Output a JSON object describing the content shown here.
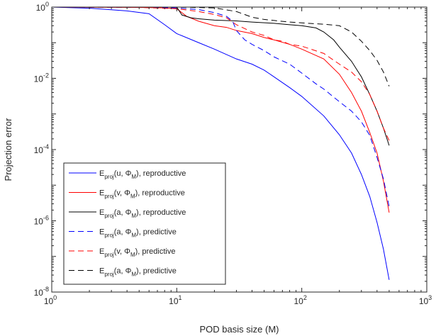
{
  "chart_data": {
    "type": "line",
    "xlabel": "POD basis size (M)",
    "ylabel": "Projection error",
    "xscale": "log",
    "yscale": "log",
    "xlim": [
      1,
      1000
    ],
    "ylim": [
      1e-08,
      1
    ],
    "grid": false,
    "legend_position": "bottom-left",
    "x_ticks": [
      {
        "value": 1,
        "base": "10",
        "exp": "0"
      },
      {
        "value": 10,
        "base": "10",
        "exp": "1"
      },
      {
        "value": 100,
        "base": "10",
        "exp": "2"
      },
      {
        "value": 1000,
        "base": "10",
        "exp": "3"
      }
    ],
    "y_ticks": [
      {
        "value": 1,
        "base": "10",
        "exp": "0"
      },
      {
        "value": 0.01,
        "base": "10",
        "exp": "-2"
      },
      {
        "value": 0.0001,
        "base": "10",
        "exp": "-4"
      },
      {
        "value": 1e-06,
        "base": "10",
        "exp": "-6"
      },
      {
        "value": 1e-08,
        "base": "10",
        "exp": "-8"
      }
    ],
    "series": [
      {
        "legend": {
          "quantity": "u",
          "suffix": ", reproductive"
        },
        "color": "#0000ff",
        "style": "solid",
        "x": [
          1,
          2,
          4,
          6,
          8,
          10,
          15,
          20,
          30,
          40,
          50,
          60,
          80,
          100,
          150,
          200,
          250,
          300,
          350,
          400,
          450,
          500
        ],
        "y": [
          1,
          0.93,
          0.78,
          0.65,
          0.32,
          0.18,
          0.1,
          0.066,
          0.035,
          0.025,
          0.017,
          0.011,
          0.0055,
          0.0031,
          0.00088,
          0.00026,
          8e-05,
          2e-05,
          4.8e-06,
          9e-07,
          1.6e-07,
          2.2e-08
        ]
      },
      {
        "legend": {
          "quantity": "v",
          "suffix": ", reproductive"
        },
        "color": "#ff0000",
        "style": "solid",
        "x": [
          1,
          5,
          8,
          10,
          12,
          15,
          20,
          25,
          30,
          40,
          50,
          60,
          80,
          100,
          150,
          200,
          250,
          300,
          350,
          400,
          450,
          500
        ],
        "y": [
          1,
          0.98,
          0.95,
          0.9,
          0.55,
          0.4,
          0.3,
          0.27,
          0.22,
          0.18,
          0.14,
          0.12,
          0.09,
          0.066,
          0.035,
          0.013,
          0.004,
          0.0012,
          0.0003,
          8e-05,
          1.3e-05,
          1.7e-06
        ]
      },
      {
        "legend": {
          "quantity": "a",
          "suffix": ", reproductive"
        },
        "color": "#000000",
        "style": "solid",
        "x": [
          1,
          5,
          10,
          11,
          13,
          15,
          20,
          30,
          40,
          60,
          80,
          100,
          130,
          150,
          180,
          200,
          250,
          300,
          350,
          400,
          450,
          500
        ],
        "y": [
          1,
          1,
          1,
          0.6,
          0.5,
          0.47,
          0.43,
          0.41,
          0.38,
          0.35,
          0.32,
          0.3,
          0.26,
          0.2,
          0.12,
          0.075,
          0.03,
          0.011,
          0.0035,
          0.0012,
          0.0004,
          0.00013
        ]
      },
      {
        "legend": {
          "quantity": "a",
          "suffix": ", predictive"
        },
        "color": "#0000ff",
        "style": "dashed",
        "x": [
          1,
          5,
          10,
          15,
          20,
          25,
          28,
          30,
          35,
          40,
          50,
          60,
          80,
          100,
          130,
          150,
          200,
          250,
          300,
          350,
          400,
          450,
          500
        ],
        "y": [
          1,
          0.98,
          0.95,
          0.85,
          0.7,
          0.55,
          0.4,
          0.22,
          0.12,
          0.09,
          0.06,
          0.04,
          0.025,
          0.014,
          0.007,
          0.005,
          0.0022,
          0.0012,
          0.0006,
          0.00025,
          6e-05,
          1.5e-05,
          2.5e-06
        ]
      },
      {
        "legend": {
          "quantity": "v",
          "suffix": ", predictive"
        },
        "color": "#ff0000",
        "style": "dashed",
        "x": [
          1,
          5,
          10,
          15,
          20,
          25,
          30,
          40,
          50,
          60,
          70,
          80,
          100,
          150,
          200,
          250,
          300,
          350,
          400,
          450,
          500
        ],
        "y": [
          1,
          0.98,
          0.9,
          0.75,
          0.62,
          0.5,
          0.32,
          0.2,
          0.16,
          0.12,
          0.11,
          0.09,
          0.08,
          0.05,
          0.025,
          0.015,
          0.008,
          0.0035,
          0.0012,
          0.0004,
          0.00018
        ]
      },
      {
        "legend": {
          "quantity": "a",
          "suffix": ", predictive"
        },
        "color": "#000000",
        "style": "dashed",
        "x": [
          1,
          5,
          10,
          20,
          30,
          40,
          50,
          60,
          80,
          100,
          150,
          200,
          250,
          300,
          350,
          400,
          450,
          500
        ],
        "y": [
          1,
          1,
          1,
          0.95,
          0.75,
          0.52,
          0.45,
          0.42,
          0.38,
          0.36,
          0.33,
          0.3,
          0.2,
          0.11,
          0.06,
          0.032,
          0.015,
          0.006
        ]
      }
    ],
    "legend_template": {
      "E": "E",
      "sub": "proj",
      "phi": "Φ",
      "phi_sub": "M"
    }
  },
  "colors": {
    "axis": "#262626",
    "background": "#ffffff"
  }
}
